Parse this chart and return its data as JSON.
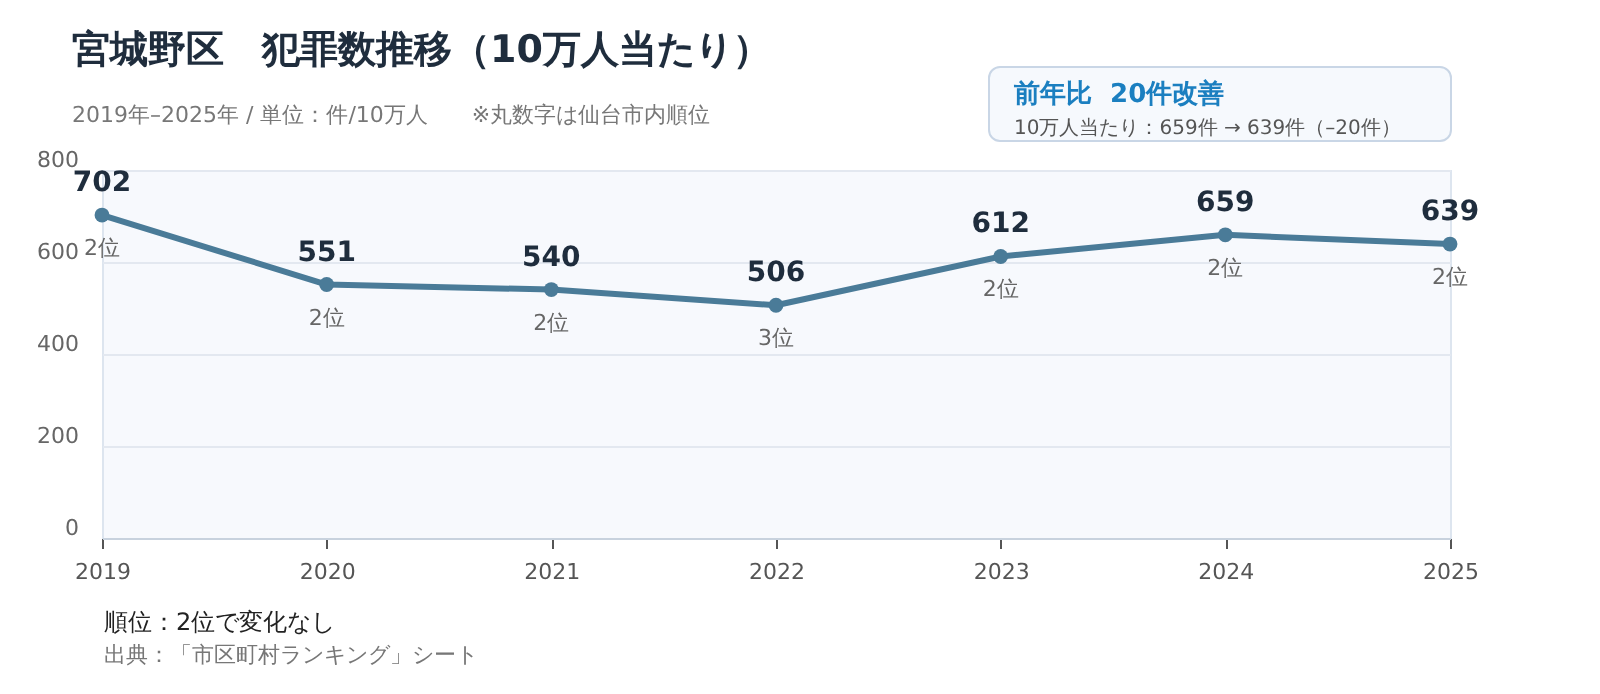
{
  "chart_data": {
    "type": "line",
    "title": "宮城野区　犯罪数推移（10万人当たり）",
    "subtitle": "2019年–2025年 / 単位：件/10万人　　※丸数字は仙台市内順位",
    "categories": [
      "2019",
      "2020",
      "2021",
      "2022",
      "2023",
      "2024",
      "2025"
    ],
    "series": [
      {
        "color": "#4a7b98",
        "values": [
          702,
          551,
          540,
          506,
          612,
          659,
          639
        ]
      }
    ],
    "ylim": [
      0,
      800
    ],
    "yticks": [
      0,
      200,
      400,
      600,
      800
    ],
    "grid": "y",
    "marker": "circle",
    "line_style": "solid",
    "data_labels": true,
    "annotations": [
      "前年比  20件改善",
      "10万人当たり：659件 → 639件（–20件）",
      "順位：2位で変化なし",
      "出典：「市区町村ランキング」シート",
      {
        "text": "2位",
        "x": "2019",
        "y": 702
      },
      {
        "text": "2位",
        "x": "2020",
        "y": 551
      },
      {
        "text": "2位",
        "x": "2021",
        "y": 540
      },
      {
        "text": "3位",
        "x": "2022",
        "y": 506
      },
      {
        "text": "2位",
        "x": "2023",
        "y": 612
      },
      {
        "text": "2位",
        "x": "2024",
        "y": 659
      },
      {
        "text": "2位",
        "x": "2025",
        "y": 639
      }
    ]
  }
}
